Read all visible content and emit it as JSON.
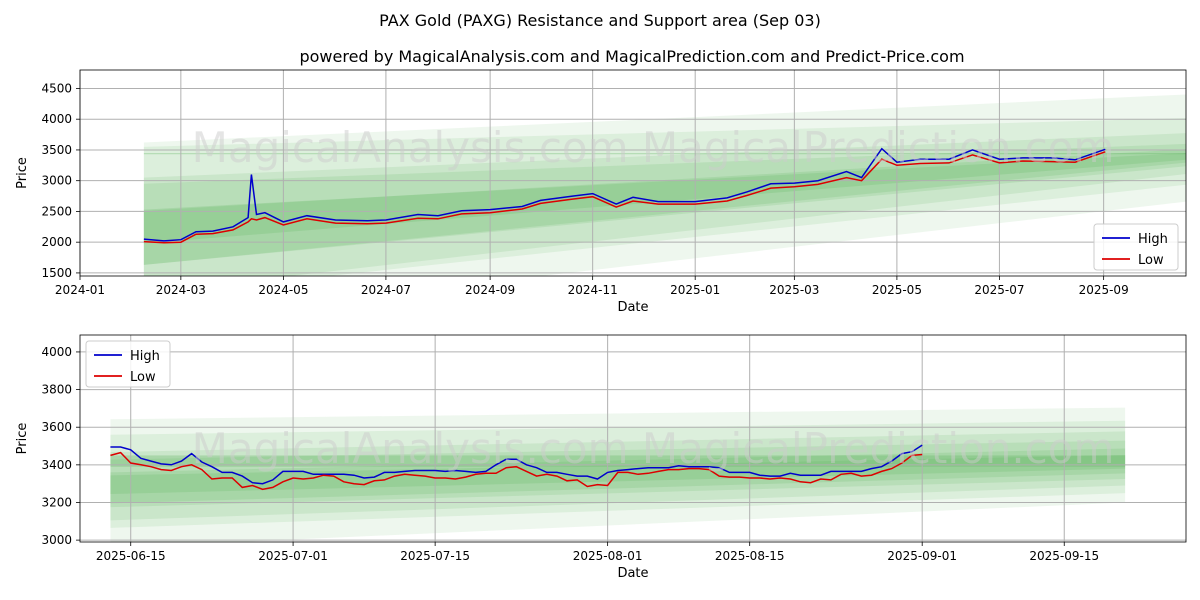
{
  "figure": {
    "title": "PAX Gold (PAXG) Resistance and Support area (Sep 03)",
    "subtitle": "powered by MagicalAnalysis.com and MagicalPrediction.com and Predict-Price.com",
    "watermark_text": "MagicalAnalysis.com    MagicalPrediction.com"
  },
  "colors": {
    "high": "#0000cc",
    "low": "#dd0000",
    "band": "#5cb35c",
    "grid": "#b0b0b0"
  },
  "chart_data": [
    {
      "type": "line",
      "xlabel": "Date",
      "ylabel": "Price",
      "x_ticks": [
        "2024-01",
        "2024-03",
        "2024-05",
        "2024-07",
        "2024-09",
        "2024-11",
        "2025-01",
        "2025-03",
        "2025-05",
        "2025-07",
        "2025-09"
      ],
      "y_ticks": [
        1500,
        2000,
        2500,
        3000,
        3500,
        4000,
        4500
      ],
      "xlim": [
        "2024-01-01",
        "2025-10-20"
      ],
      "ylim": [
        1450,
        4800
      ],
      "grid": true,
      "legend_position": "lower-right",
      "series": [
        {
          "name": "High",
          "color": "#0000cc",
          "x": [
            "2024-02-08",
            "2024-02-20",
            "2024-03-01",
            "2024-03-10",
            "2024-03-20",
            "2024-04-01",
            "2024-04-10",
            "2024-04-12",
            "2024-04-15",
            "2024-04-20",
            "2024-05-01",
            "2024-05-15",
            "2024-06-01",
            "2024-06-20",
            "2024-07-01",
            "2024-07-20",
            "2024-08-01",
            "2024-08-15",
            "2024-09-01",
            "2024-09-20",
            "2024-10-01",
            "2024-10-20",
            "2024-11-01",
            "2024-11-15",
            "2024-11-25",
            "2024-12-10",
            "2025-01-01",
            "2025-01-20",
            "2025-02-01",
            "2025-02-15",
            "2025-03-01",
            "2025-03-15",
            "2025-04-01",
            "2025-04-10",
            "2025-04-22",
            "2025-05-01",
            "2025-05-15",
            "2025-06-01",
            "2025-06-15",
            "2025-07-01",
            "2025-07-15",
            "2025-08-01",
            "2025-08-15",
            "2025-09-02"
          ],
          "values": [
            2050,
            2020,
            2040,
            2170,
            2180,
            2250,
            2400,
            3100,
            2450,
            2480,
            2330,
            2430,
            2360,
            2350,
            2360,
            2450,
            2430,
            2510,
            2530,
            2580,
            2680,
            2750,
            2790,
            2620,
            2730,
            2660,
            2660,
            2720,
            2820,
            2950,
            2960,
            3000,
            3150,
            3050,
            3520,
            3300,
            3350,
            3350,
            3500,
            3350,
            3370,
            3370,
            3340,
            3510
          ]
        },
        {
          "name": "Low",
          "color": "#dd0000",
          "x": [
            "2024-02-08",
            "2024-02-20",
            "2024-03-01",
            "2024-03-10",
            "2024-03-20",
            "2024-04-01",
            "2024-04-10",
            "2024-04-12",
            "2024-04-15",
            "2024-04-20",
            "2024-05-01",
            "2024-05-15",
            "2024-06-01",
            "2024-06-20",
            "2024-07-01",
            "2024-07-20",
            "2024-08-01",
            "2024-08-15",
            "2024-09-01",
            "2024-09-20",
            "2024-10-01",
            "2024-10-20",
            "2024-11-01",
            "2024-11-15",
            "2024-11-25",
            "2024-12-10",
            "2025-01-01",
            "2025-01-20",
            "2025-02-01",
            "2025-02-15",
            "2025-03-01",
            "2025-03-15",
            "2025-04-01",
            "2025-04-10",
            "2025-04-22",
            "2025-05-01",
            "2025-05-15",
            "2025-06-01",
            "2025-06-15",
            "2025-07-01",
            "2025-07-15",
            "2025-08-01",
            "2025-08-15",
            "2025-09-02"
          ],
          "values": [
            2010,
            1990,
            2000,
            2130,
            2140,
            2200,
            2330,
            2380,
            2360,
            2400,
            2280,
            2380,
            2310,
            2300,
            2310,
            2390,
            2380,
            2460,
            2480,
            2540,
            2630,
            2700,
            2740,
            2570,
            2670,
            2620,
            2620,
            2670,
            2760,
            2880,
            2900,
            2940,
            3050,
            3000,
            3350,
            3250,
            3280,
            3290,
            3420,
            3290,
            3320,
            3310,
            3300,
            3470
          ]
        }
      ]
    },
    {
      "type": "line",
      "xlabel": "Date",
      "ylabel": "Price",
      "x_ticks": [
        "2025-06-15",
        "2025-07-01",
        "2025-07-15",
        "2025-08-01",
        "2025-08-15",
        "2025-09-01",
        "2025-09-15"
      ],
      "y_ticks": [
        3000,
        3200,
        3400,
        3600,
        3800,
        4000
      ],
      "xlim": [
        "2025-06-10",
        "2025-09-27"
      ],
      "ylim": [
        2990,
        4090
      ],
      "grid": true,
      "legend_position": "top-left",
      "series": [
        {
          "name": "High",
          "color": "#0000cc",
          "x": [
            "2025-06-13",
            "2025-06-14",
            "2025-06-15",
            "2025-06-16",
            "2025-06-17",
            "2025-06-18",
            "2025-06-19",
            "2025-06-20",
            "2025-06-21",
            "2025-06-22",
            "2025-06-23",
            "2025-06-24",
            "2025-06-25",
            "2025-06-26",
            "2025-06-27",
            "2025-06-28",
            "2025-06-29",
            "2025-06-30",
            "2025-07-01",
            "2025-07-02",
            "2025-07-03",
            "2025-07-04",
            "2025-07-05",
            "2025-07-06",
            "2025-07-07",
            "2025-07-08",
            "2025-07-09",
            "2025-07-10",
            "2025-07-11",
            "2025-07-12",
            "2025-07-13",
            "2025-07-14",
            "2025-07-15",
            "2025-07-16",
            "2025-07-17",
            "2025-07-18",
            "2025-07-19",
            "2025-07-20",
            "2025-07-21",
            "2025-07-22",
            "2025-07-23",
            "2025-07-24",
            "2025-07-25",
            "2025-07-26",
            "2025-07-27",
            "2025-07-28",
            "2025-07-29",
            "2025-07-30",
            "2025-07-31",
            "2025-08-01",
            "2025-08-02",
            "2025-08-03",
            "2025-08-04",
            "2025-08-05",
            "2025-08-06",
            "2025-08-07",
            "2025-08-08",
            "2025-08-09",
            "2025-08-10",
            "2025-08-11",
            "2025-08-12",
            "2025-08-13",
            "2025-08-14",
            "2025-08-15",
            "2025-08-16",
            "2025-08-17",
            "2025-08-18",
            "2025-08-19",
            "2025-08-20",
            "2025-08-21",
            "2025-08-22",
            "2025-08-23",
            "2025-08-24",
            "2025-08-25",
            "2025-08-26",
            "2025-08-27",
            "2025-08-28",
            "2025-08-29",
            "2025-08-30",
            "2025-08-31",
            "2025-09-01"
          ],
          "values": [
            3495,
            3495,
            3480,
            3435,
            3420,
            3405,
            3400,
            3420,
            3460,
            3415,
            3390,
            3360,
            3360,
            3340,
            3305,
            3300,
            3320,
            3365,
            3365,
            3365,
            3350,
            3350,
            3350,
            3350,
            3345,
            3330,
            3335,
            3360,
            3360,
            3365,
            3370,
            3370,
            3370,
            3365,
            3370,
            3365,
            3360,
            3365,
            3400,
            3430,
            3430,
            3400,
            3385,
            3360,
            3360,
            3350,
            3340,
            3340,
            3325,
            3360,
            3370,
            3375,
            3380,
            3385,
            3385,
            3385,
            3395,
            3390,
            3390,
            3390,
            3385,
            3360,
            3360,
            3360,
            3345,
            3340,
            3340,
            3355,
            3345,
            3345,
            3345,
            3365,
            3365,
            3365,
            3365,
            3380,
            3390,
            3420,
            3460,
            3470,
            3505
          ]
        },
        {
          "name": "Low",
          "color": "#dd0000",
          "x": [
            "2025-06-13",
            "2025-06-14",
            "2025-06-15",
            "2025-06-16",
            "2025-06-17",
            "2025-06-18",
            "2025-06-19",
            "2025-06-20",
            "2025-06-21",
            "2025-06-22",
            "2025-06-23",
            "2025-06-24",
            "2025-06-25",
            "2025-06-26",
            "2025-06-27",
            "2025-06-28",
            "2025-06-29",
            "2025-06-30",
            "2025-07-01",
            "2025-07-02",
            "2025-07-03",
            "2025-07-04",
            "2025-07-05",
            "2025-07-06",
            "2025-07-07",
            "2025-07-08",
            "2025-07-09",
            "2025-07-10",
            "2025-07-11",
            "2025-07-12",
            "2025-07-13",
            "2025-07-14",
            "2025-07-15",
            "2025-07-16",
            "2025-07-17",
            "2025-07-18",
            "2025-07-19",
            "2025-07-20",
            "2025-07-21",
            "2025-07-22",
            "2025-07-23",
            "2025-07-24",
            "2025-07-25",
            "2025-07-26",
            "2025-07-27",
            "2025-07-28",
            "2025-07-29",
            "2025-07-30",
            "2025-07-31",
            "2025-08-01",
            "2025-08-02",
            "2025-08-03",
            "2025-08-04",
            "2025-08-05",
            "2025-08-06",
            "2025-08-07",
            "2025-08-08",
            "2025-08-09",
            "2025-08-10",
            "2025-08-11",
            "2025-08-12",
            "2025-08-13",
            "2025-08-14",
            "2025-08-15",
            "2025-08-16",
            "2025-08-17",
            "2025-08-18",
            "2025-08-19",
            "2025-08-20",
            "2025-08-21",
            "2025-08-22",
            "2025-08-23",
            "2025-08-24",
            "2025-08-25",
            "2025-08-26",
            "2025-08-27",
            "2025-08-28",
            "2025-08-29",
            "2025-08-30",
            "2025-08-31",
            "2025-09-01"
          ],
          "values": [
            3450,
            3465,
            3410,
            3400,
            3390,
            3375,
            3370,
            3390,
            3400,
            3375,
            3325,
            3330,
            3330,
            3280,
            3290,
            3270,
            3280,
            3310,
            3330,
            3325,
            3330,
            3345,
            3340,
            3310,
            3300,
            3295,
            3315,
            3320,
            3340,
            3350,
            3345,
            3340,
            3330,
            3330,
            3325,
            3335,
            3350,
            3355,
            3355,
            3385,
            3390,
            3365,
            3340,
            3350,
            3340,
            3315,
            3320,
            3285,
            3295,
            3290,
            3360,
            3360,
            3350,
            3355,
            3365,
            3375,
            3375,
            3380,
            3380,
            3375,
            3340,
            3335,
            3335,
            3330,
            3330,
            3325,
            3330,
            3325,
            3310,
            3305,
            3325,
            3320,
            3350,
            3355,
            3340,
            3345,
            3365,
            3380,
            3410,
            3450,
            3455
          ]
        }
      ]
    }
  ]
}
